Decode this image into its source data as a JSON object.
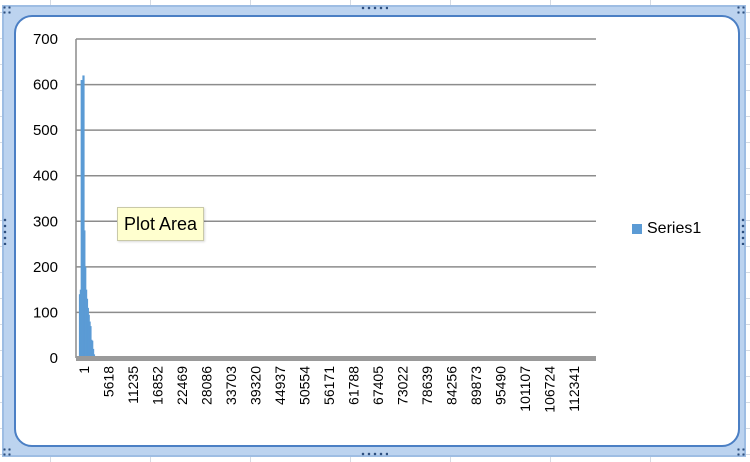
{
  "chart_data": {
    "type": "bar",
    "title": "",
    "xlabel": "",
    "ylabel": "",
    "ylim": [
      0,
      700
    ],
    "yticks": [
      "0",
      "100",
      "200",
      "300",
      "400",
      "500",
      "600",
      "700"
    ],
    "xtick_labels": [
      "1",
      "5618",
      "11235",
      "16852",
      "22469",
      "28086",
      "33703",
      "39320",
      "44937",
      "50554",
      "56171",
      "61788",
      "67405",
      "73022",
      "78639",
      "84256",
      "89873",
      "95490",
      "101107",
      "106724",
      "112341"
    ],
    "grid": true,
    "legend_position": "right",
    "series": [
      {
        "name": "Series1",
        "color": "#5b9bd5",
        "x": [
          1,
          200,
          400,
          600,
          800,
          1000,
          1200,
          1400,
          1600,
          1800,
          2000,
          2200,
          2400,
          2600,
          2800,
          3000,
          3200,
          3400,
          3600,
          3800,
          4000,
          4200
        ],
        "values": [
          140,
          150,
          610,
          600,
          620,
          280,
          200,
          150,
          130,
          110,
          95,
          80,
          70,
          40,
          38,
          20,
          8,
          4,
          3,
          2,
          1,
          1
        ]
      }
    ]
  },
  "tooltip": {
    "text": "Plot Area"
  },
  "colors": {
    "frame": "#4b7fc4",
    "bar": "#5b9bd5",
    "grid": "#8c8c8c",
    "tooltip_bg": "#ffffcf"
  }
}
